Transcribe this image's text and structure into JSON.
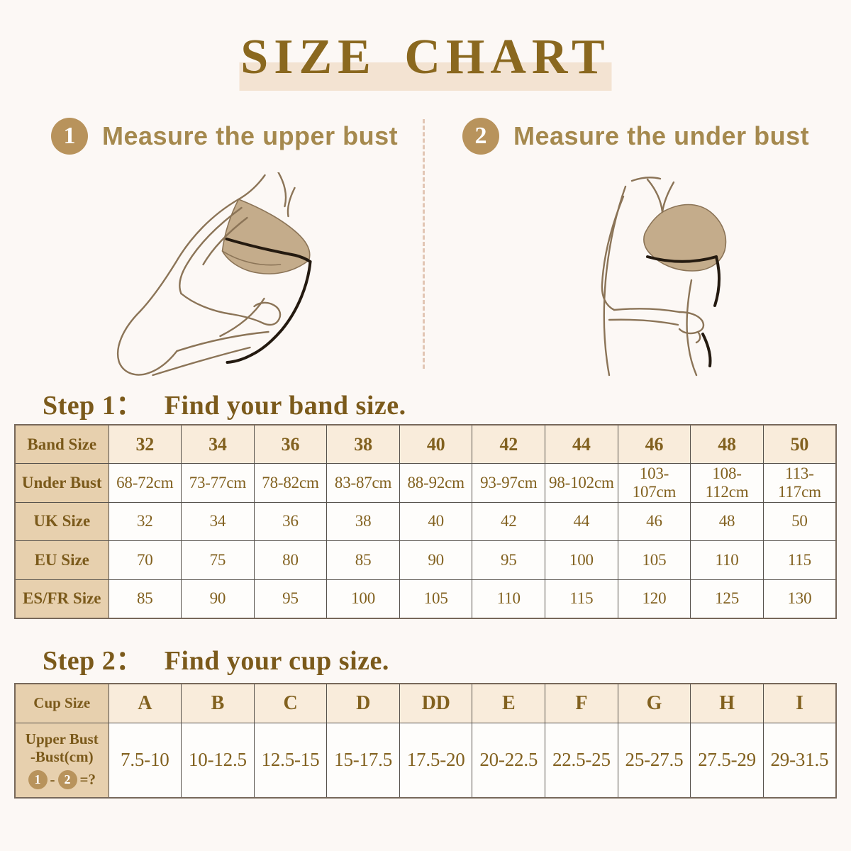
{
  "page": {
    "title": "SIZE CHART",
    "background": "#fcf8f5",
    "colors": {
      "title_text": "#8a681f",
      "title_band": "#f3e3d2",
      "heading_text": "#7b5a1b",
      "measure_text": "#a5894e",
      "circle_gold": "#b8935c",
      "table_label_bg": "#e7d0ae",
      "table_header_bg": "#f9ecdb",
      "table_border": "#56514b"
    }
  },
  "measure_steps": [
    {
      "number": "1",
      "label": "Measure the upper bust"
    },
    {
      "number": "2",
      "label": "Measure the under bust"
    }
  ],
  "step1": {
    "heading_prefix": "Step 1：",
    "heading_text": "Find your band size.",
    "table": {
      "rows": [
        {
          "kind": "header",
          "label": "Band Size",
          "cells": [
            "32",
            "34",
            "36",
            "38",
            "40",
            "42",
            "44",
            "46",
            "48",
            "50"
          ]
        },
        {
          "kind": "plain",
          "label": "Under Bust",
          "cells": [
            "68-72cm",
            "73-77cm",
            "78-82cm",
            "83-87cm",
            "88-92cm",
            "93-97cm",
            "98-102cm",
            "103-107cm",
            "108-112cm",
            "113-117cm"
          ]
        },
        {
          "kind": "plain",
          "label": "UK Size",
          "cells": [
            "32",
            "34",
            "36",
            "38",
            "40",
            "42",
            "44",
            "46",
            "48",
            "50"
          ]
        },
        {
          "kind": "plain",
          "label": "EU Size",
          "cells": [
            "70",
            "75",
            "80",
            "85",
            "90",
            "95",
            "100",
            "105",
            "110",
            "115"
          ]
        },
        {
          "kind": "plain",
          "label": "ES/FR Size",
          "cells": [
            "85",
            "90",
            "95",
            "100",
            "105",
            "110",
            "115",
            "120",
            "125",
            "130"
          ]
        }
      ]
    }
  },
  "step2": {
    "heading_prefix": "Step 2：",
    "heading_text": "Find your cup size.",
    "table": {
      "rows": [
        {
          "kind": "header",
          "label": "Cup Size",
          "cells": [
            "A",
            "B",
            "C",
            "D",
            "DD",
            "E",
            "F",
            "G",
            "H",
            "I"
          ]
        },
        {
          "kind": "tall",
          "label_lines": [
            "Upper Bust",
            "-Bust(cm)"
          ],
          "formula": {
            "circle1": "1",
            "minus": "-",
            "circle2": "2",
            "equals": "=?"
          },
          "cells": [
            "7.5-10",
            "10-12.5",
            "12.5-15",
            "15-17.5",
            "17.5-20",
            "20-22.5",
            "22.5-25",
            "25-27.5",
            "27.5-29",
            "29-31.5"
          ]
        }
      ]
    }
  }
}
